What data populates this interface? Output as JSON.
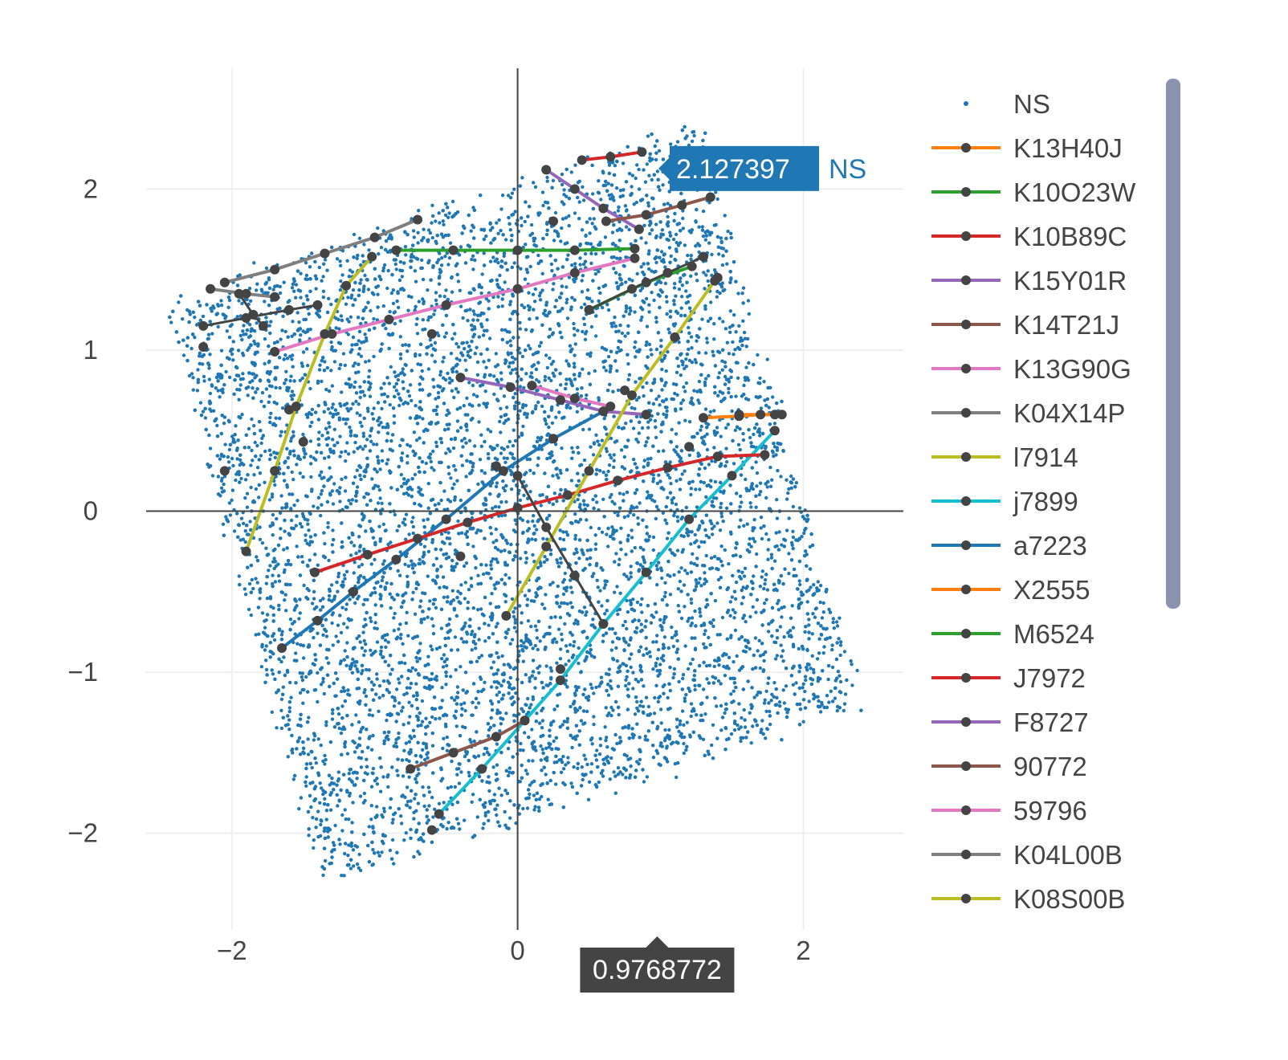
{
  "chart_data": {
    "type": "scatter",
    "title": "",
    "xlabel": "",
    "ylabel": "",
    "xlim": [
      -2.6,
      2.7
    ],
    "ylim": [
      -2.6,
      2.75
    ],
    "x_ticks": [
      {
        "value": -2,
        "label": "−2"
      },
      {
        "value": 0,
        "label": "0"
      },
      {
        "value": 2,
        "label": "2"
      }
    ],
    "y_ticks": [
      {
        "value": -2,
        "label": "−2"
      },
      {
        "value": -1,
        "label": "−1"
      },
      {
        "value": 0,
        "label": "0"
      },
      {
        "value": 1,
        "label": "1"
      },
      {
        "value": 2,
        "label": "2"
      }
    ],
    "grid": true,
    "zero_lines": true,
    "legend_position": "right",
    "cloud": {
      "name": "NS",
      "color": "#1f77b4",
      "point_count": 9000,
      "region_corners": [
        [
          -2.45,
          1.3
        ],
        [
          1.25,
          2.4
        ],
        [
          2.4,
          -1.2
        ],
        [
          -1.35,
          -2.3
        ]
      ]
    },
    "series": [
      {
        "name": "K13H40J",
        "color": "#ff7f0e",
        "points": [
          [
            1.3,
            0.58
          ],
          [
            1.55,
            0.59
          ],
          [
            1.7,
            0.6
          ],
          [
            1.85,
            0.6
          ]
        ]
      },
      {
        "name": "K10O23W",
        "color": "#2ca02c",
        "points": [
          [
            -0.85,
            1.62
          ],
          [
            -0.45,
            1.62
          ],
          [
            0.0,
            1.62
          ],
          [
            0.4,
            1.62
          ],
          [
            0.82,
            1.63
          ]
        ]
      },
      {
        "name": "K10B89C",
        "color": "#d62728",
        "points": [
          [
            0.45,
            2.18
          ],
          [
            0.65,
            2.2
          ],
          [
            0.87,
            2.23
          ]
        ]
      },
      {
        "name": "K15Y01R",
        "color": "#9467bd",
        "points": [
          [
            0.2,
            2.12
          ],
          [
            0.4,
            2.0
          ],
          [
            0.6,
            1.88
          ],
          [
            0.85,
            1.75
          ]
        ]
      },
      {
        "name": "K14T21J",
        "color": "#8c564b",
        "points": [
          [
            0.62,
            1.8
          ],
          [
            0.9,
            1.84
          ],
          [
            1.15,
            1.9
          ],
          [
            1.35,
            1.95
          ]
        ]
      },
      {
        "name": "K13G90G",
        "color": "#e377c2",
        "points": [
          [
            -1.7,
            0.99
          ],
          [
            -1.3,
            1.1
          ],
          [
            -0.9,
            1.19
          ],
          [
            -0.5,
            1.28
          ],
          [
            0.0,
            1.38
          ],
          [
            0.4,
            1.48
          ],
          [
            0.82,
            1.57
          ]
        ]
      },
      {
        "name": "K04X14P",
        "color": "#7f7f7f",
        "points": [
          [
            -2.05,
            1.42
          ],
          [
            -1.7,
            1.5
          ],
          [
            -1.35,
            1.6
          ],
          [
            -1.0,
            1.7
          ],
          [
            -0.7,
            1.81
          ]
        ]
      },
      {
        "name": "l7914",
        "color": "#bcbd22",
        "points": [
          [
            -1.9,
            -0.25
          ],
          [
            -1.7,
            0.25
          ],
          [
            -1.55,
            0.65
          ],
          [
            -1.35,
            1.1
          ],
          [
            -1.2,
            1.4
          ],
          [
            -1.02,
            1.58
          ]
        ]
      },
      {
        "name": "j7899",
        "color": "#17becf",
        "points": [
          [
            -0.55,
            -1.88
          ],
          [
            -0.25,
            -1.6
          ],
          [
            0.05,
            -1.3
          ],
          [
            0.3,
            -1.05
          ],
          [
            0.6,
            -0.7
          ],
          [
            0.9,
            -0.38
          ],
          [
            1.2,
            -0.05
          ],
          [
            1.5,
            0.22
          ],
          [
            1.8,
            0.5
          ]
        ]
      },
      {
        "name": "a7223",
        "color": "#1f77b4",
        "points": [
          [
            -1.65,
            -0.85
          ],
          [
            -1.4,
            -0.68
          ],
          [
            -1.15,
            -0.5
          ],
          [
            -0.85,
            -0.3
          ],
          [
            -0.5,
            -0.05
          ],
          [
            -0.1,
            0.25
          ],
          [
            0.25,
            0.45
          ],
          [
            0.6,
            0.62
          ]
        ]
      },
      {
        "name": "X2555",
        "color": "#ff7f0e",
        "points": [
          [
            1.55,
            0.6
          ],
          [
            1.8,
            0.6
          ]
        ]
      },
      {
        "name": "M6524",
        "color": "#2ca02c",
        "points": [
          [
            0.5,
            1.25
          ],
          [
            0.9,
            1.42
          ],
          [
            1.22,
            1.52
          ]
        ]
      },
      {
        "name": "J7972",
        "color": "#d62728",
        "points": [
          [
            -1.42,
            -0.38
          ],
          [
            -1.05,
            -0.27
          ],
          [
            -0.7,
            -0.17
          ],
          [
            -0.35,
            -0.07
          ],
          [
            0.0,
            0.02
          ],
          [
            0.35,
            0.1
          ],
          [
            0.7,
            0.19
          ],
          [
            1.05,
            0.27
          ],
          [
            1.4,
            0.34
          ],
          [
            1.73,
            0.35
          ]
        ]
      },
      {
        "name": "F8727",
        "color": "#9467bd",
        "points": [
          [
            -0.4,
            0.83
          ],
          [
            -0.05,
            0.77
          ],
          [
            0.3,
            0.69
          ],
          [
            0.6,
            0.62
          ],
          [
            0.9,
            0.6
          ]
        ]
      },
      {
        "name": "90772",
        "color": "#8c564b",
        "points": [
          [
            -0.75,
            -1.6
          ],
          [
            -0.45,
            -1.5
          ],
          [
            -0.15,
            -1.4
          ],
          [
            0.05,
            -1.3
          ]
        ]
      },
      {
        "name": "59796",
        "color": "#e377c2",
        "points": [
          [
            0.1,
            0.78
          ],
          [
            0.4,
            0.7
          ],
          [
            0.65,
            0.65
          ]
        ]
      },
      {
        "name": "K04L00B",
        "color": "#7f7f7f",
        "points": [
          [
            -2.15,
            1.38
          ],
          [
            -1.9,
            1.35
          ],
          [
            -1.7,
            1.33
          ]
        ]
      },
      {
        "name": "K08S00B",
        "color": "#bcbd22",
        "points": [
          [
            -0.08,
            -0.65
          ],
          [
            0.2,
            -0.22
          ],
          [
            0.5,
            0.25
          ],
          [
            0.8,
            0.72
          ],
          [
            1.1,
            1.08
          ],
          [
            1.38,
            1.43
          ]
        ]
      }
    ],
    "extra_paths": [
      {
        "color": "#444444",
        "points": [
          [
            -2.2,
            1.15
          ],
          [
            -1.9,
            1.2
          ],
          [
            -1.6,
            1.25
          ],
          [
            -1.4,
            1.28
          ]
        ]
      },
      {
        "color": "#444444",
        "points": [
          [
            0.5,
            1.25
          ],
          [
            0.8,
            1.38
          ],
          [
            1.05,
            1.48
          ],
          [
            1.3,
            1.58
          ]
        ]
      },
      {
        "color": "#444444",
        "points": [
          [
            0.0,
            0.22
          ],
          [
            0.2,
            -0.1
          ],
          [
            0.4,
            -0.4
          ],
          [
            0.6,
            -0.7
          ]
        ]
      },
      {
        "color": "#444444",
        "points": [
          [
            -1.95,
            1.35
          ],
          [
            -1.85,
            1.22
          ],
          [
            -1.78,
            1.15
          ]
        ]
      }
    ],
    "isolated_markers": [
      [
        -2.2,
        1.02
      ],
      [
        -2.05,
        0.25
      ],
      [
        -1.6,
        0.63
      ],
      [
        -1.5,
        0.43
      ],
      [
        0.75,
        0.75
      ],
      [
        1.2,
        0.4
      ],
      [
        0.25,
        1.8
      ],
      [
        -0.6,
        1.1
      ],
      [
        0.9,
        0.6
      ],
      [
        -0.4,
        -0.28
      ],
      [
        -0.15,
        0.28
      ],
      [
        0.3,
        -0.98
      ],
      [
        -0.6,
        -1.98
      ],
      [
        1.4,
        1.45
      ]
    ],
    "hover_x": {
      "value": 0.9768772,
      "label": "0.9768772"
    },
    "hover_y": {
      "value": 2.127397,
      "label": "2.127397",
      "series": "NS"
    },
    "scrollbar": {
      "visible": true
    }
  }
}
